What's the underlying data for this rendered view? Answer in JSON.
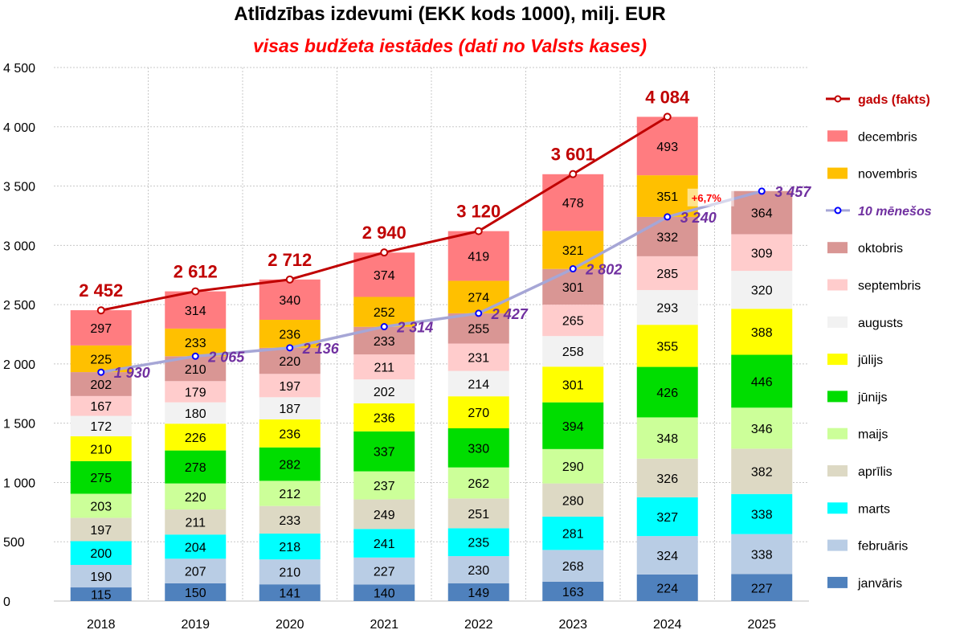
{
  "chart_data": {
    "type": "bar",
    "title": "Atlīdzības izdevumi (EKK kods 1000), milj. EUR",
    "subtitle": "visas budžeta iestādes (dati no Valsts kases)",
    "categories": [
      "2018",
      "2019",
      "2020",
      "2021",
      "2022",
      "2023",
      "2024",
      "2025"
    ],
    "ylim": [
      0,
      4500
    ],
    "yticks": [
      0,
      500,
      1000,
      1500,
      2000,
      2500,
      3000,
      3500,
      4000,
      4500
    ],
    "ytick_labels": [
      "0",
      "500",
      "1 000",
      "1 500",
      "2 000",
      "2 500",
      "3 000",
      "3 500",
      "4 000",
      "4 500"
    ],
    "grid": "dotted, horizontal and vertical",
    "legend_position": "right",
    "stacked_series": [
      {
        "name": "janvāris",
        "color": "#4f81bd",
        "values": [
          115,
          150,
          141,
          140,
          149,
          163,
          224,
          227
        ]
      },
      {
        "name": "februāris",
        "color": "#b9cde5",
        "values": [
          190,
          207,
          210,
          227,
          230,
          268,
          324,
          338
        ]
      },
      {
        "name": "marts",
        "color": "#00ffff",
        "values": [
          200,
          204,
          218,
          241,
          235,
          281,
          327,
          338
        ]
      },
      {
        "name": "aprīlis",
        "color": "#ddd9c4",
        "values": [
          197,
          211,
          233,
          249,
          251,
          280,
          326,
          382
        ]
      },
      {
        "name": "maijs",
        "color": "#ccff99",
        "values": [
          203,
          220,
          212,
          237,
          262,
          290,
          348,
          346
        ]
      },
      {
        "name": "jūnijs",
        "color": "#00dd00",
        "values": [
          275,
          278,
          282,
          337,
          330,
          394,
          426,
          446
        ]
      },
      {
        "name": "jūlijs",
        "color": "#ffff00",
        "values": [
          210,
          226,
          236,
          236,
          270,
          301,
          355,
          388
        ]
      },
      {
        "name": "augusts",
        "color": "#f2f2f2",
        "values": [
          172,
          180,
          187,
          202,
          214,
          258,
          293,
          320
        ]
      },
      {
        "name": "septembris",
        "color": "#ffcccc",
        "values": [
          167,
          179,
          197,
          211,
          231,
          265,
          285,
          309
        ]
      },
      {
        "name": "oktobris",
        "color": "#d99694",
        "values": [
          202,
          210,
          220,
          233,
          255,
          301,
          332,
          364
        ]
      },
      {
        "name": "novembris",
        "color": "#ffc000",
        "values": [
          225,
          233,
          236,
          252,
          274,
          321,
          351,
          null
        ]
      },
      {
        "name": "decembris",
        "color": "#ff7c80",
        "values": [
          297,
          314,
          340,
          374,
          419,
          478,
          493,
          null
        ]
      }
    ],
    "line_series": [
      {
        "name": "gads (fakts)",
        "color": "#c00000",
        "values": [
          2452,
          2612,
          2712,
          2940,
          3120,
          3601,
          4084,
          null
        ],
        "labels": [
          "2 452",
          "2 612",
          "2 712",
          "2 940",
          "3 120",
          "3 601",
          "4 084",
          ""
        ]
      },
      {
        "name": "10 mēnešos",
        "color": "#a6a6d6",
        "marker_color": "#0000ff",
        "label_color": "#7030a0",
        "values": [
          1930,
          2065,
          2136,
          2314,
          2427,
          2802,
          3240,
          3457
        ],
        "labels": [
          "1 930",
          "2 065",
          "2 136",
          "2 314",
          "2 427",
          "2 802",
          "3 240",
          "3 457"
        ]
      }
    ],
    "annotations": [
      {
        "text": "+6,7%",
        "color": "#ff0000"
      }
    ]
  },
  "legend": [
    {
      "label": "gads (fakts)",
      "kind": "line",
      "color": "#c00000",
      "marker": "#c00000",
      "label_color": "#c00000",
      "bold": true,
      "italic": false
    },
    {
      "label": "decembris",
      "kind": "box",
      "color": "#ff7c80"
    },
    {
      "label": "novembris",
      "kind": "box",
      "color": "#ffc000"
    },
    {
      "label": "10 mēnešos",
      "kind": "line",
      "color": "#a6a6d6",
      "marker": "#0000ff",
      "label_color": "#7030a0",
      "bold": true,
      "italic": true
    },
    {
      "label": "oktobris",
      "kind": "box",
      "color": "#d99694"
    },
    {
      "label": "septembris",
      "kind": "box",
      "color": "#ffcccc"
    },
    {
      "label": "augusts",
      "kind": "box",
      "color": "#f2f2f2"
    },
    {
      "label": "jūlijs",
      "kind": "box",
      "color": "#ffff00"
    },
    {
      "label": "jūnijs",
      "kind": "box",
      "color": "#00dd00"
    },
    {
      "label": "maijs",
      "kind": "box",
      "color": "#ccff99"
    },
    {
      "label": "aprīlis",
      "kind": "box",
      "color": "#ddd9c4"
    },
    {
      "label": "marts",
      "kind": "box",
      "color": "#00ffff"
    },
    {
      "label": "februāris",
      "kind": "box",
      "color": "#b9cde5"
    },
    {
      "label": "janvāris",
      "kind": "box",
      "color": "#4f81bd"
    }
  ]
}
